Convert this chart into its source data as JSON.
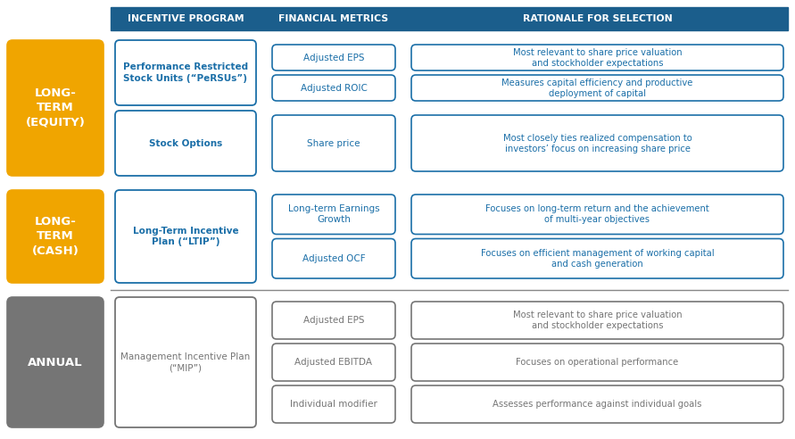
{
  "title_bg_color": "#1b5e8c",
  "title_text_color": "#ffffff",
  "orange_bg": "#f0a500",
  "gray_bg": "#757575",
  "blue_border": "#1b6fa8",
  "blue_text": "#1b6fa8",
  "gray_text": "#757575",
  "white_bg": "#ffffff",
  "header_row": {
    "col1": "INCENTIVE PROGRAM",
    "col2": "FINANCIAL METRICS",
    "col3": "RATIONALE FOR SELECTION"
  },
  "sections": [
    {
      "label": "LONG-\nTERM\n(EQUITY)",
      "label_color": "#ffffff",
      "bg_color": "#f0a500",
      "colored": true,
      "sub_rows": [
        {
          "program": "Performance Restricted\nStock Units (“PeRSUs”)",
          "program_bold": true,
          "metrics": [
            "Adjusted EPS",
            "Adjusted ROIC"
          ],
          "rationale": [
            "Most relevant to share price valuation\nand stockholder expectations",
            "Measures capital efficiency and productive\ndeployment of capital"
          ]
        },
        {
          "program": "Stock Options",
          "program_bold": true,
          "metrics": [
            "Share price"
          ],
          "rationale": [
            "Most closely ties realized compensation to\ninvestors’ focus on increasing share price"
          ]
        }
      ]
    },
    {
      "label": "LONG-\nTERM\n(CASH)",
      "label_color": "#ffffff",
      "bg_color": "#f0a500",
      "colored": true,
      "sub_rows": [
        {
          "program": "Long-Term Incentive\nPlan (“LTIP”)",
          "program_bold": true,
          "metrics": [
            "Long-term Earnings\nGrowth",
            "Adjusted OCF"
          ],
          "rationale": [
            "Focuses on long-term return and the achievement\nof multi-year objectives",
            "Focuses on efficient management of working capital\nand cash generation"
          ]
        }
      ]
    },
    {
      "label": "ANNUAL",
      "label_color": "#ffffff",
      "bg_color": "#757575",
      "colored": false,
      "sub_rows": [
        {
          "program": "Management Incentive Plan\n(“MIP”)",
          "program_bold": false,
          "metrics": [
            "Adjusted EPS",
            "Adjusted EBITDA",
            "Individual modifier"
          ],
          "rationale": [
            "Most relevant to share price valuation\nand stockholder expectations",
            "Focuses on operational performance",
            "Assesses performance against individual goals"
          ]
        }
      ]
    }
  ]
}
